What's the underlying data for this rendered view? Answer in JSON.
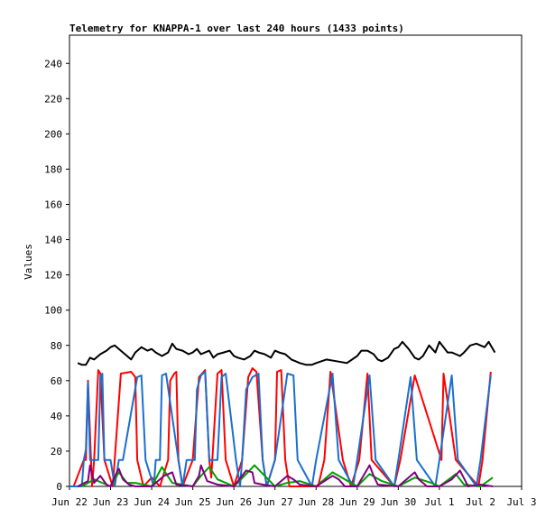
{
  "chart_data": {
    "type": "line",
    "title": "Telemetry for KNAPPA-1 over last 240 hours (1433 points)",
    "xlabel": "",
    "ylabel": "Values",
    "ylim": [
      0,
      256
    ],
    "xlim": [
      "Jun 22",
      "Jul 3"
    ],
    "x_ticks": [
      "Jun 22",
      "Jun 23",
      "Jun 24",
      "Jun 25",
      "Jun 26",
      "Jun 27",
      "Jun 28",
      "Jun 29",
      "Jun 30",
      "Jul 1",
      "Jul 2",
      "Jul 3"
    ],
    "y_ticks": [
      0,
      20,
      40,
      60,
      80,
      100,
      120,
      140,
      160,
      180,
      200,
      220,
      240
    ],
    "grid": false,
    "legend": "none",
    "x_unit": "days since Jun 22 00:00",
    "series": [
      {
        "color": "#000000",
        "x": [
          0.2,
          0.3,
          0.4,
          0.5,
          0.6,
          0.75,
          0.9,
          1.0,
          1.1,
          1.25,
          1.4,
          1.5,
          1.6,
          1.75,
          1.9,
          2.0,
          2.1,
          2.25,
          2.4,
          2.5,
          2.6,
          2.75,
          2.9,
          3.0,
          3.1,
          3.2,
          3.4,
          3.5,
          3.6,
          3.75,
          3.9,
          4.0,
          4.1,
          4.25,
          4.4,
          4.5,
          4.6,
          4.75,
          4.9,
          5.0,
          5.1,
          5.25,
          5.4,
          5.5,
          5.6,
          5.75,
          5.9,
          6.0,
          6.25,
          6.5,
          6.75,
          7.0,
          7.1,
          7.25,
          7.4,
          7.5,
          7.6,
          7.75,
          7.9,
          8.0,
          8.1,
          8.25,
          8.4,
          8.5,
          8.6,
          8.75,
          8.9,
          9.0,
          9.1,
          9.2,
          9.3,
          9.4,
          9.5,
          9.6,
          9.75,
          9.9,
          10.0,
          10.1,
          10.2,
          10.25,
          10.35
        ],
        "y": [
          70,
          69,
          69,
          73,
          72,
          75,
          77,
          79,
          80,
          77,
          74,
          72,
          76,
          79,
          77,
          78,
          76,
          74,
          76,
          81,
          78,
          77,
          75,
          76,
          78,
          75,
          77,
          73,
          75,
          76,
          77,
          74,
          73,
          72,
          74,
          77,
          76,
          75,
          73,
          77,
          76,
          75,
          72,
          71,
          70,
          69,
          69,
          70,
          72,
          71,
          70,
          74,
          77,
          77,
          75,
          72,
          71,
          73,
          78,
          79,
          82,
          78,
          73,
          72,
          74,
          80,
          76,
          82,
          79,
          76,
          76,
          75,
          74,
          76,
          80,
          81,
          80,
          79,
          82,
          80,
          76
        ],
        "values_note": "outside-ambient style trace"
      },
      {
        "color": "#ff0000",
        "x": [
          0.1,
          0.35,
          0.4,
          0.45,
          0.55,
          0.6,
          0.7,
          0.75,
          0.85,
          1.05,
          1.1,
          1.25,
          1.5,
          1.6,
          1.65,
          1.8,
          2.0,
          2.2,
          2.4,
          2.45,
          2.55,
          2.6,
          2.65,
          2.75,
          3.0,
          3.15,
          3.3,
          3.4,
          3.45,
          3.6,
          3.7,
          3.8,
          4.0,
          4.2,
          4.35,
          4.45,
          4.55,
          4.7,
          4.8,
          5.0,
          5.05,
          5.15,
          5.25,
          5.35,
          6.05,
          6.2,
          6.35,
          6.65,
          6.85,
          7.05,
          7.25,
          7.35,
          7.9,
          8.05,
          8.4,
          9.05,
          9.1,
          9.4,
          9.95,
          10.05,
          10.25
        ],
        "y": [
          0,
          15,
          15,
          60,
          0,
          15,
          66,
          64,
          15,
          0,
          15,
          64,
          65,
          62,
          15,
          0,
          5,
          0,
          15,
          60,
          64,
          65,
          15,
          0,
          15,
          62,
          66,
          15,
          5,
          64,
          66,
          15,
          0,
          15,
          62,
          67,
          65,
          15,
          0,
          15,
          65,
          66,
          15,
          0,
          0,
          15,
          65,
          15,
          0,
          15,
          64,
          15,
          0,
          15,
          63,
          15,
          64,
          15,
          0,
          15,
          65
        ],
        "values_note": "duty-cycle trace, mostly covered by blue"
      },
      {
        "color": "#1a6fd0",
        "x": [
          0.0,
          0.3,
          0.35,
          0.4,
          0.45,
          0.5,
          0.55,
          0.7,
          0.75,
          0.8,
          0.85,
          1.0,
          1.1,
          1.2,
          1.3,
          1.65,
          1.75,
          1.85,
          2.05,
          2.1,
          2.2,
          2.25,
          2.35,
          2.65,
          2.75,
          2.85,
          3.05,
          3.1,
          3.2,
          3.3,
          3.4,
          3.6,
          3.7,
          3.8,
          4.05,
          4.15,
          4.2,
          4.3,
          4.45,
          4.6,
          4.7,
          4.8,
          5.0,
          5.3,
          5.45,
          5.55,
          5.9,
          6.0,
          6.4,
          6.55,
          6.9,
          7.0,
          7.3,
          7.45,
          7.9,
          8.0,
          8.3,
          8.45,
          8.9,
          9.0,
          9.3,
          9.45,
          9.9,
          10.0,
          10.25
        ],
        "y": [
          0,
          0,
          15,
          21,
          59,
          15,
          15,
          15,
          62,
          64,
          15,
          15,
          0,
          15,
          15,
          62,
          63,
          15,
          0,
          15,
          15,
          63,
          64,
          15,
          0,
          15,
          15,
          55,
          63,
          65,
          15,
          15,
          62,
          64,
          15,
          0,
          15,
          55,
          62,
          64,
          15,
          0,
          15,
          64,
          63,
          15,
          0,
          15,
          64,
          15,
          0,
          15,
          63,
          15,
          0,
          15,
          62,
          15,
          0,
          15,
          63,
          15,
          0,
          15,
          63
        ],
        "values_note": "primary blue duty-cycle trace"
      },
      {
        "color": "#00a000",
        "x": [
          0.3,
          0.6,
          1.0,
          1.2,
          1.4,
          1.6,
          2.0,
          2.25,
          2.3,
          2.5,
          3.0,
          3.2,
          3.4,
          3.6,
          3.8,
          4.0,
          4.3,
          4.5,
          5.0,
          5.3,
          5.6,
          6.0,
          6.4,
          6.7,
          7.0,
          7.3,
          7.6,
          8.0,
          8.4,
          8.8,
          9.0,
          9.4,
          9.6,
          10.0,
          10.3
        ],
        "y": [
          0,
          4,
          0,
          8,
          2,
          2,
          0,
          11,
          9,
          2,
          0,
          6,
          11,
          4,
          2,
          0,
          7,
          12,
          0,
          2,
          3,
          0,
          8,
          4,
          0,
          7,
          3,
          0,
          5,
          2,
          0,
          7,
          1,
          0,
          5
        ],
        "values_note": "small green activity trace"
      },
      {
        "color": "#800080",
        "x": [
          0.2,
          0.45,
          0.5,
          0.6,
          0.75,
          0.9,
          1.0,
          1.15,
          1.2,
          1.3,
          1.45,
          1.6,
          2.0,
          2.3,
          2.5,
          2.6,
          3.0,
          3.15,
          3.2,
          3.35,
          3.6,
          4.0,
          4.3,
          4.45,
          4.5,
          4.7,
          5.0,
          5.3,
          5.45,
          5.6,
          6.0,
          6.4,
          6.55,
          6.7,
          7.0,
          7.3,
          7.4,
          7.5,
          8.0,
          8.4,
          8.5,
          8.7,
          9.0,
          9.3,
          9.5,
          9.7,
          10.0,
          10.3
        ],
        "y": [
          0,
          3,
          12,
          2,
          6,
          1,
          0,
          8,
          10,
          4,
          1,
          0,
          0,
          6,
          8,
          1,
          0,
          6,
          12,
          3,
          1,
          0,
          9,
          8,
          2,
          1,
          0,
          6,
          4,
          1,
          0,
          6,
          4,
          0,
          0,
          12,
          6,
          1,
          0,
          8,
          4,
          0,
          0,
          4,
          9,
          0,
          1,
          0
        ],
        "values_note": "purple trace"
      }
    ]
  }
}
